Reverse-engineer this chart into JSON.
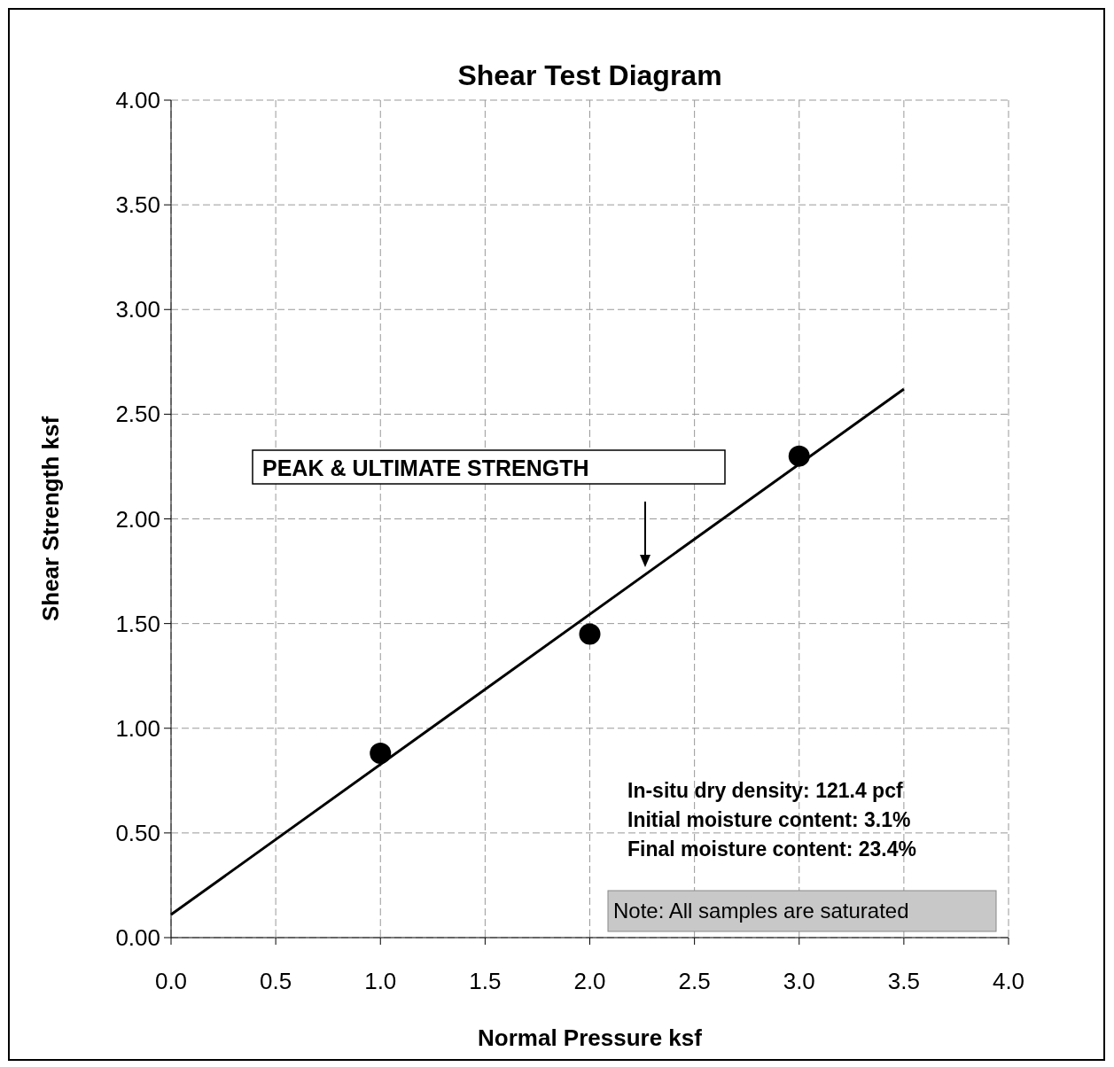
{
  "chart_data": {
    "type": "scatter",
    "title": "Shear Test Diagram",
    "xlabel": "Normal Pressure ksf",
    "ylabel": "Shear Strength ksf",
    "xlim": [
      0,
      4
    ],
    "ylim": [
      0,
      4
    ],
    "xticks": [
      {
        "value": 0,
        "label": "0.0"
      },
      0.5,
      {
        "value": 1,
        "label": "1.0"
      },
      1.5,
      {
        "value": 2,
        "label": "2.0"
      },
      2.5,
      {
        "value": 3,
        "label": "3.0"
      },
      3.5,
      {
        "value": 4,
        "label": "4.0"
      }
    ],
    "yticks": [
      {
        "value": 0,
        "label": "0.00"
      },
      {
        "value": 0.5,
        "label": "0.50"
      },
      {
        "value": 1,
        "label": "1.00"
      },
      {
        "value": 1.5,
        "label": "1.50"
      },
      {
        "value": 2,
        "label": "2.00"
      },
      {
        "value": 2.5,
        "label": "2.50"
      },
      {
        "value": 3,
        "label": "3.00"
      },
      {
        "value": 3.5,
        "label": "3.50"
      },
      {
        "value": 4,
        "label": "4.00"
      }
    ],
    "grid": true,
    "marker": "circle",
    "series": [
      {
        "color": "#000000",
        "x": [
          1.0,
          2.0,
          3.0
        ],
        "values": [
          0.88,
          1.45,
          2.3
        ]
      },
      {
        "type": "line",
        "color": "#000000",
        "marker": "none",
        "x": [
          0,
          3.5
        ],
        "values": [
          0.11,
          2.62
        ]
      }
    ],
    "annotations": [
      "PEAK & ULTIMATE STRENGTH",
      "In-situ dry density: 121.4 pcf",
      "Initial moisture content: 3.1%",
      "Final moisture content: 23.4%",
      "Note: All samples are saturated"
    ]
  }
}
